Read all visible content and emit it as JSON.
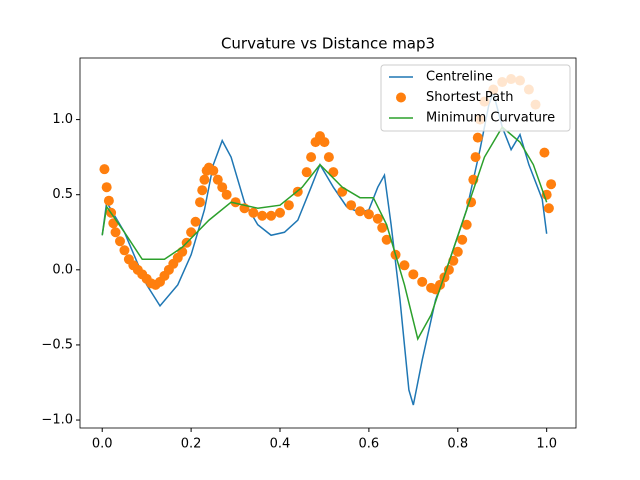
{
  "chart_data": {
    "type": "line",
    "title": "Curvature vs Distance map3",
    "xlim": [
      -0.05,
      1.066
    ],
    "ylim": [
      -1.053,
      1.41
    ],
    "xticks": [
      {
        "value": 0,
        "label": "0.0"
      },
      {
        "value": 0.2,
        "label": "0.2"
      },
      {
        "value": 0.4,
        "label": "0.4"
      },
      {
        "value": 0.6,
        "label": "0.6"
      },
      {
        "value": 0.8,
        "label": "0.8"
      },
      {
        "value": 1,
        "label": "1.0"
      }
    ],
    "yticks": [
      {
        "value": -1,
        "label": "−1.0"
      },
      {
        "value": -0.5,
        "label": "−0.5"
      },
      {
        "value": 0,
        "label": "0.0"
      },
      {
        "value": 0.5,
        "label": "0.5"
      },
      {
        "value": 1,
        "label": "1.0"
      }
    ],
    "legend": "upper right",
    "series": [
      {
        "name": "Centreline",
        "color": "#1f77b4",
        "kind": "line",
        "x": [
          0,
          0.01,
          0.05,
          0.1,
          0.13,
          0.17,
          0.2,
          0.23,
          0.25,
          0.27,
          0.29,
          0.32,
          0.35,
          0.38,
          0.41,
          0.44,
          0.47,
          0.49,
          0.52,
          0.55,
          0.58,
          0.6,
          0.62,
          0.635,
          0.65,
          0.67,
          0.69,
          0.7,
          0.72,
          0.75,
          0.78,
          0.82,
          0.85,
          0.87,
          0.88,
          0.9,
          0.92,
          0.94,
          0.96,
          0.99,
          1.0
        ],
        "values": [
          0.23,
          0.45,
          0.25,
          -0.1,
          -0.24,
          -0.1,
          0.1,
          0.4,
          0.7,
          0.86,
          0.75,
          0.45,
          0.3,
          0.23,
          0.25,
          0.33,
          0.55,
          0.7,
          0.55,
          0.42,
          0.38,
          0.4,
          0.55,
          0.63,
          0.3,
          -0.2,
          -0.8,
          -0.9,
          -0.6,
          -0.2,
          0.05,
          0.4,
          0.8,
          1.1,
          1.18,
          0.95,
          0.8,
          0.9,
          0.7,
          0.47,
          0.24
        ]
      },
      {
        "name": "Shortest Path",
        "color": "#ff7f0e",
        "kind": "scatter",
        "x": [
          0.005,
          0.01,
          0.015,
          0.02,
          0.025,
          0.03,
          0.04,
          0.05,
          0.06,
          0.07,
          0.08,
          0.09,
          0.1,
          0.11,
          0.12,
          0.13,
          0.14,
          0.15,
          0.16,
          0.17,
          0.18,
          0.19,
          0.2,
          0.21,
          0.22,
          0.225,
          0.23,
          0.235,
          0.24,
          0.25,
          0.26,
          0.27,
          0.28,
          0.3,
          0.32,
          0.34,
          0.36,
          0.38,
          0.4,
          0.42,
          0.44,
          0.46,
          0.47,
          0.48,
          0.49,
          0.5,
          0.51,
          0.52,
          0.54,
          0.56,
          0.58,
          0.6,
          0.62,
          0.63,
          0.64,
          0.66,
          0.68,
          0.7,
          0.72,
          0.74,
          0.75,
          0.76,
          0.77,
          0.78,
          0.79,
          0.8,
          0.81,
          0.82,
          0.83,
          0.835,
          0.84,
          0.845,
          0.85,
          0.86,
          0.88,
          0.9,
          0.92,
          0.94,
          0.96,
          0.975,
          0.995,
          1.0,
          1.005,
          1.01
        ],
        "values": [
          0.67,
          0.55,
          0.46,
          0.38,
          0.31,
          0.25,
          0.19,
          0.13,
          0.07,
          0.03,
          0,
          -0.03,
          -0.06,
          -0.09,
          -0.1,
          -0.08,
          -0.04,
          0,
          0.04,
          0.08,
          0.12,
          0.18,
          0.25,
          0.32,
          0.45,
          0.53,
          0.6,
          0.66,
          0.68,
          0.66,
          0.6,
          0.55,
          0.5,
          0.45,
          0.41,
          0.38,
          0.36,
          0.36,
          0.38,
          0.43,
          0.52,
          0.65,
          0.75,
          0.85,
          0.89,
          0.85,
          0.75,
          0.65,
          0.52,
          0.43,
          0.39,
          0.37,
          0.34,
          0.28,
          0.2,
          0.1,
          0.03,
          -0.03,
          -0.08,
          -0.12,
          -0.13,
          -0.1,
          -0.05,
          0,
          0.06,
          0.12,
          0.2,
          0.3,
          0.45,
          0.6,
          0.75,
          0.88,
          1,
          1.12,
          1.2,
          1.25,
          1.27,
          1.26,
          1.2,
          1.1,
          0.78,
          0.5,
          0.41,
          0.57
        ]
      },
      {
        "name": "Minimum Curvature",
        "color": "#2ca02c",
        "kind": "line",
        "x": [
          0,
          0.01,
          0.05,
          0.09,
          0.14,
          0.18,
          0.24,
          0.29,
          0.35,
          0.4,
          0.45,
          0.49,
          0.54,
          0.58,
          0.61,
          0.64,
          0.68,
          0.71,
          0.74,
          0.78,
          0.82,
          0.86,
          0.9,
          0.94,
          0.97,
          1.0
        ],
        "values": [
          0.23,
          0.42,
          0.25,
          0.07,
          0.07,
          0.15,
          0.33,
          0.45,
          0.41,
          0.43,
          0.55,
          0.7,
          0.55,
          0.48,
          0.48,
          0.3,
          -0.1,
          -0.46,
          -0.3,
          0.05,
          0.4,
          0.75,
          0.95,
          0.85,
          0.7,
          0.45
        ]
      }
    ]
  }
}
